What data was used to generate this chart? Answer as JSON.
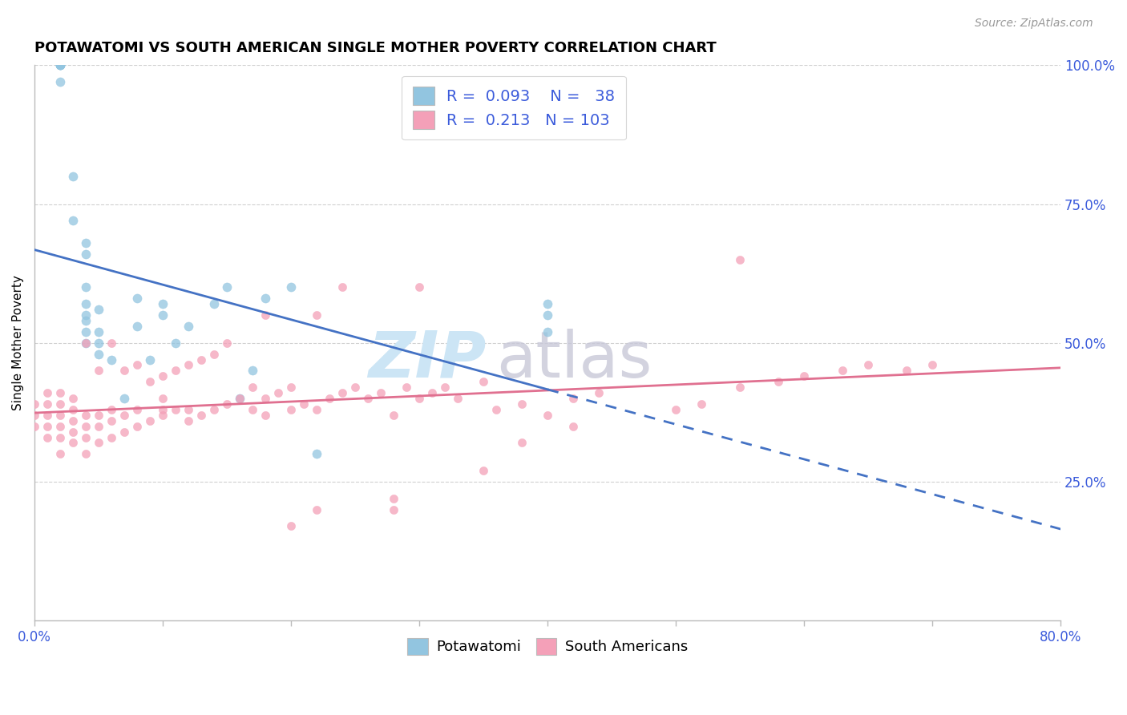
{
  "title": "POTAWATOMI VS SOUTH AMERICAN SINGLE MOTHER POVERTY CORRELATION CHART",
  "source": "Source: ZipAtlas.com",
  "ylabel": "Single Mother Poverty",
  "xlim": [
    0.0,
    0.8
  ],
  "ylim": [
    0.0,
    1.0
  ],
  "potawatomi_R": 0.093,
  "potawatomi_N": 38,
  "south_american_R": 0.213,
  "south_american_N": 103,
  "potawatomi_color": "#92c5e0",
  "south_american_color": "#f4a0b8",
  "potawatomi_line_color": "#4472c4",
  "south_american_line_color": "#e07090",
  "legend_text_color": "#3b5bdb",
  "potawatomi_x": [
    0.02,
    0.02,
    0.02,
    0.02,
    0.02,
    0.03,
    0.03,
    0.04,
    0.04,
    0.04,
    0.04,
    0.04,
    0.04,
    0.04,
    0.04,
    0.05,
    0.05,
    0.05,
    0.05,
    0.06,
    0.07,
    0.08,
    0.08,
    0.09,
    0.1,
    0.1,
    0.11,
    0.12,
    0.14,
    0.15,
    0.16,
    0.17,
    0.18,
    0.2,
    0.22,
    0.4,
    0.4,
    0.4
  ],
  "potawatomi_y": [
    1.0,
    1.0,
    1.0,
    1.0,
    0.97,
    0.8,
    0.72,
    0.68,
    0.66,
    0.6,
    0.57,
    0.55,
    0.54,
    0.52,
    0.5,
    0.56,
    0.52,
    0.5,
    0.48,
    0.47,
    0.4,
    0.58,
    0.53,
    0.47,
    0.57,
    0.55,
    0.5,
    0.53,
    0.57,
    0.6,
    0.4,
    0.45,
    0.58,
    0.6,
    0.3,
    0.57,
    0.55,
    0.52
  ],
  "south_american_x": [
    0.0,
    0.0,
    0.0,
    0.01,
    0.01,
    0.01,
    0.01,
    0.01,
    0.02,
    0.02,
    0.02,
    0.02,
    0.02,
    0.02,
    0.03,
    0.03,
    0.03,
    0.03,
    0.03,
    0.04,
    0.04,
    0.04,
    0.04,
    0.04,
    0.05,
    0.05,
    0.05,
    0.05,
    0.06,
    0.06,
    0.06,
    0.06,
    0.07,
    0.07,
    0.07,
    0.08,
    0.08,
    0.08,
    0.09,
    0.09,
    0.1,
    0.1,
    0.1,
    0.1,
    0.11,
    0.11,
    0.12,
    0.12,
    0.12,
    0.13,
    0.13,
    0.14,
    0.14,
    0.15,
    0.15,
    0.16,
    0.17,
    0.17,
    0.18,
    0.18,
    0.18,
    0.19,
    0.2,
    0.2,
    0.21,
    0.22,
    0.22,
    0.23,
    0.24,
    0.24,
    0.25,
    0.26,
    0.27,
    0.28,
    0.29,
    0.3,
    0.3,
    0.31,
    0.32,
    0.33,
    0.35,
    0.36,
    0.38,
    0.4,
    0.42,
    0.44,
    0.5,
    0.52,
    0.55,
    0.58,
    0.6,
    0.63,
    0.65,
    0.68,
    0.7,
    0.55,
    0.28,
    0.38,
    0.42,
    0.2,
    0.22,
    0.28,
    0.35
  ],
  "south_american_y": [
    0.35,
    0.37,
    0.39,
    0.33,
    0.35,
    0.37,
    0.39,
    0.41,
    0.3,
    0.33,
    0.35,
    0.37,
    0.39,
    0.41,
    0.32,
    0.34,
    0.36,
    0.38,
    0.4,
    0.3,
    0.33,
    0.35,
    0.37,
    0.5,
    0.32,
    0.35,
    0.37,
    0.45,
    0.33,
    0.36,
    0.38,
    0.5,
    0.34,
    0.37,
    0.45,
    0.35,
    0.38,
    0.46,
    0.36,
    0.43,
    0.37,
    0.38,
    0.4,
    0.44,
    0.38,
    0.45,
    0.36,
    0.38,
    0.46,
    0.37,
    0.47,
    0.38,
    0.48,
    0.39,
    0.5,
    0.4,
    0.38,
    0.42,
    0.37,
    0.4,
    0.55,
    0.41,
    0.38,
    0.42,
    0.39,
    0.38,
    0.55,
    0.4,
    0.41,
    0.6,
    0.42,
    0.4,
    0.41,
    0.37,
    0.42,
    0.4,
    0.6,
    0.41,
    0.42,
    0.4,
    0.43,
    0.38,
    0.39,
    0.37,
    0.4,
    0.41,
    0.38,
    0.39,
    0.42,
    0.43,
    0.44,
    0.45,
    0.46,
    0.45,
    0.46,
    0.65,
    0.2,
    0.32,
    0.35,
    0.17,
    0.2,
    0.22,
    0.27
  ]
}
